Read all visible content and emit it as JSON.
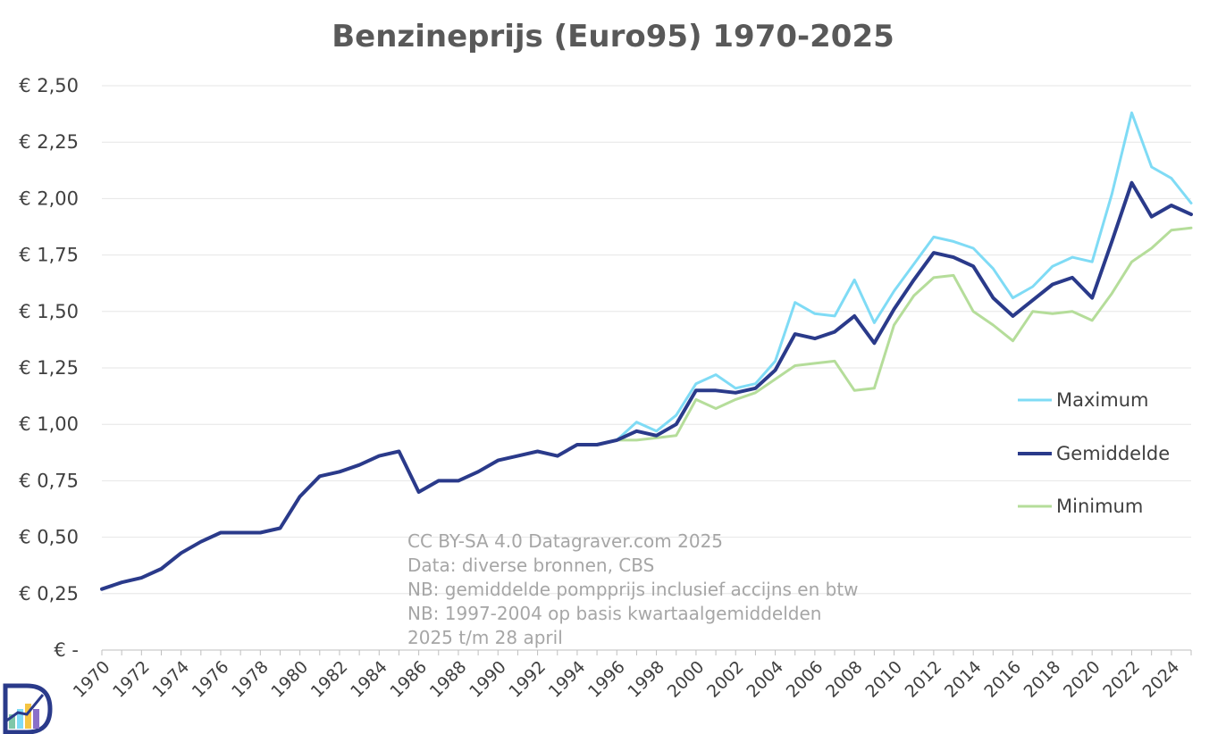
{
  "chart_data": {
    "type": "line",
    "title": "Benzineprijs (Euro95) 1970-2025",
    "xlabel": "",
    "ylabel": "",
    "xlim": [
      1970,
      2025
    ],
    "ylim": [
      0,
      2.5
    ],
    "y_ticks": [
      {
        "value": 0,
        "label": "€ -"
      },
      {
        "value": 0.25,
        "label": "€ 0,25"
      },
      {
        "value": 0.5,
        "label": "€ 0,50"
      },
      {
        "value": 0.75,
        "label": "€ 0,75"
      },
      {
        "value": 1.0,
        "label": "€ 1,00"
      },
      {
        "value": 1.25,
        "label": "€ 1,25"
      },
      {
        "value": 1.5,
        "label": "€ 1,50"
      },
      {
        "value": 1.75,
        "label": "€ 1,75"
      },
      {
        "value": 2.0,
        "label": "€ 2,00"
      },
      {
        "value": 2.25,
        "label": "€ 2,25"
      },
      {
        "value": 2.5,
        "label": "€ 2,50"
      }
    ],
    "x_tick_labels": [
      "1970",
      "1972",
      "1974",
      "1976",
      "1978",
      "1980",
      "1982",
      "1984",
      "1986",
      "1988",
      "1990",
      "1992",
      "1994",
      "1996",
      "1998",
      "2000",
      "2002",
      "2004",
      "2006",
      "2008",
      "2010",
      "2012",
      "2014",
      "2016",
      "2018",
      "2020",
      "2022",
      "2024"
    ],
    "grid": true,
    "legend_position": "right",
    "series": [
      {
        "name": "Maximum",
        "color": "#7fdbf5",
        "x": [
          1996,
          1997,
          1998,
          1999,
          2000,
          2001,
          2002,
          2003,
          2004,
          2005,
          2006,
          2007,
          2008,
          2009,
          2010,
          2011,
          2012,
          2013,
          2014,
          2015,
          2016,
          2017,
          2018,
          2019,
          2020,
          2021,
          2022,
          2023,
          2024,
          2025
        ],
        "values": [
          0.93,
          1.01,
          0.97,
          1.04,
          1.18,
          1.22,
          1.16,
          1.18,
          1.28,
          1.54,
          1.49,
          1.48,
          1.64,
          1.45,
          1.59,
          1.71,
          1.83,
          1.81,
          1.78,
          1.69,
          1.56,
          1.61,
          1.7,
          1.74,
          1.72,
          2.02,
          2.38,
          2.14,
          2.09,
          1.98
        ]
      },
      {
        "name": "Gemiddelde",
        "color": "#2a3a8a",
        "x": [
          1970,
          1971,
          1972,
          1973,
          1974,
          1975,
          1976,
          1977,
          1978,
          1979,
          1980,
          1981,
          1982,
          1983,
          1984,
          1985,
          1986,
          1987,
          1988,
          1989,
          1990,
          1991,
          1992,
          1993,
          1994,
          1995,
          1996,
          1997,
          1998,
          1999,
          2000,
          2001,
          2002,
          2003,
          2004,
          2005,
          2006,
          2007,
          2008,
          2009,
          2010,
          2011,
          2012,
          2013,
          2014,
          2015,
          2016,
          2017,
          2018,
          2019,
          2020,
          2021,
          2022,
          2023,
          2024,
          2025
        ],
        "values": [
          0.27,
          0.3,
          0.32,
          0.36,
          0.43,
          0.48,
          0.52,
          0.52,
          0.52,
          0.54,
          0.68,
          0.77,
          0.79,
          0.82,
          0.86,
          0.88,
          0.7,
          0.75,
          0.75,
          0.79,
          0.84,
          0.86,
          0.88,
          0.86,
          0.91,
          0.91,
          0.93,
          0.97,
          0.95,
          1.0,
          1.15,
          1.15,
          1.14,
          1.16,
          1.24,
          1.4,
          1.38,
          1.41,
          1.48,
          1.36,
          1.51,
          1.64,
          1.76,
          1.74,
          1.7,
          1.56,
          1.48,
          1.55,
          1.62,
          1.65,
          1.56,
          1.81,
          2.07,
          1.92,
          1.97,
          1.93
        ]
      },
      {
        "name": "Minimum",
        "color": "#b5dd9a",
        "x": [
          1996,
          1997,
          1998,
          1999,
          2000,
          2001,
          2002,
          2003,
          2004,
          2005,
          2006,
          2007,
          2008,
          2009,
          2010,
          2011,
          2012,
          2013,
          2014,
          2015,
          2016,
          2017,
          2018,
          2019,
          2020,
          2021,
          2022,
          2023,
          2024,
          2025
        ],
        "values": [
          0.93,
          0.93,
          0.94,
          0.95,
          1.11,
          1.07,
          1.11,
          1.14,
          1.2,
          1.26,
          1.27,
          1.28,
          1.15,
          1.16,
          1.44,
          1.57,
          1.65,
          1.66,
          1.5,
          1.44,
          1.37,
          1.5,
          1.49,
          1.5,
          1.46,
          1.58,
          1.72,
          1.78,
          1.86,
          1.87
        ]
      }
    ],
    "annotations": [
      "CC BY-SA 4.0 Datagraver.com 2025",
      "Data: diverse bronnen, CBS",
      "NB: gemiddelde pompprijs inclusief accijns en btw",
      "NB: 1997-2004 op basis kwartaalgemiddelden",
      "2025 t/m 28 april"
    ]
  }
}
